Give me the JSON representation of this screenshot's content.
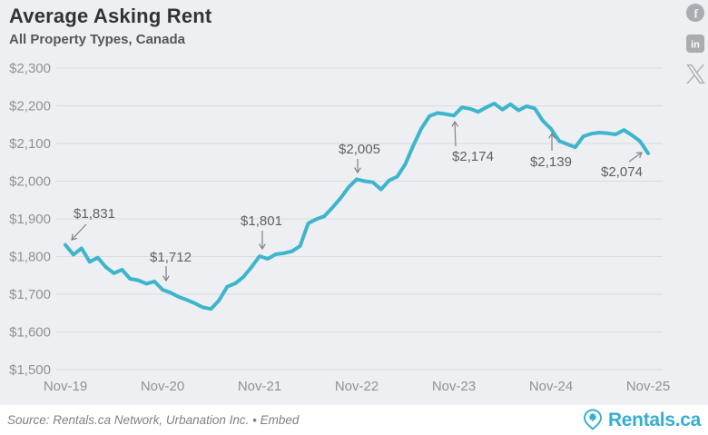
{
  "header": {
    "title": "Average Asking Rent",
    "subtitle": "All Property Types, Canada"
  },
  "social": {
    "facebook_glyph": "f",
    "linkedin_glyph": "in",
    "icon_color": "#a9acb0"
  },
  "footer": {
    "source_text": "Source: Rentals.ca Network, Urbanation Inc.",
    "separator": "•",
    "embed_label": "Embed",
    "logo_text": "Rentals.ca",
    "logo_color": "#35aed0"
  },
  "chart_data": {
    "type": "line",
    "title": "Average Asking Rent",
    "subtitle": "All Property Types, Canada",
    "unit": "CAD dollars per month",
    "line_color": "#3db5cb",
    "background_color": "#edeff3",
    "grid": true,
    "legend": false,
    "ylim": [
      1500,
      2300
    ],
    "x_range": [
      "2019-11",
      "2025-11"
    ],
    "y_ticks": [
      {
        "label": "$2,300",
        "value": 2300
      },
      {
        "label": "$2,200",
        "value": 2200
      },
      {
        "label": "$2,100",
        "value": 2100
      },
      {
        "label": "$2,000",
        "value": 2000
      },
      {
        "label": "$1,900",
        "value": 1900
      },
      {
        "label": "$1,800",
        "value": 1800
      },
      {
        "label": "$1,700",
        "value": 1700
      },
      {
        "label": "$1,600",
        "value": 1600
      },
      {
        "label": "$1,500",
        "value": 1500
      }
    ],
    "x_ticks": [
      {
        "label": "Nov-19",
        "month_index": 0
      },
      {
        "label": "Nov-20",
        "month_index": 12
      },
      {
        "label": "Nov-21",
        "month_index": 24
      },
      {
        "label": "Nov-22",
        "month_index": 36
      },
      {
        "label": "Nov-23",
        "month_index": 48
      },
      {
        "label": "Nov-24",
        "month_index": 60
      },
      {
        "label": "Nov-25",
        "month_index": 72
      }
    ],
    "series": [
      {
        "name": "Average asking rent, all property types, Canada",
        "start_month": "2019-11",
        "end_month": "2025-11",
        "frequency": "monthly",
        "values": [
          1831,
          1805,
          1822,
          1786,
          1797,
          1772,
          1756,
          1765,
          1741,
          1737,
          1728,
          1734,
          1712,
          1704,
          1693,
          1685,
          1676,
          1665,
          1661,
          1684,
          1720,
          1729,
          1746,
          1772,
          1801,
          1794,
          1806,
          1809,
          1814,
          1828,
          1888,
          1899,
          1907,
          1930,
          1955,
          1984,
          2005,
          2000,
          1997,
          1978,
          2002,
          2012,
          2045,
          2095,
          2140,
          2173,
          2181,
          2178,
          2174,
          2196,
          2192,
          2184,
          2196,
          2206,
          2190,
          2204,
          2188,
          2199,
          2193,
          2160,
          2139,
          2107,
          2098,
          2090,
          2119,
          2126,
          2129,
          2127,
          2124,
          2136,
          2122,
          2106,
          2074
        ]
      }
    ],
    "annotations": [
      {
        "label": "$1,831",
        "month": "2019-11",
        "month_index": 0,
        "value": 1831
      },
      {
        "label": "$1,712",
        "month": "2020-11",
        "month_index": 12,
        "value": 1712
      },
      {
        "label": "$1,801",
        "month": "2021-11",
        "month_index": 24,
        "value": 1801
      },
      {
        "label": "$2,005",
        "month": "2022-11",
        "month_index": 36,
        "value": 2005
      },
      {
        "label": "$2,174",
        "month": "2023-11",
        "month_index": 48,
        "value": 2174
      },
      {
        "label": "$2,139",
        "month": "2024-11",
        "month_index": 60,
        "value": 2139
      },
      {
        "label": "$2,074",
        "month": "2025-11",
        "month_index": 72,
        "value": 2074
      }
    ]
  }
}
